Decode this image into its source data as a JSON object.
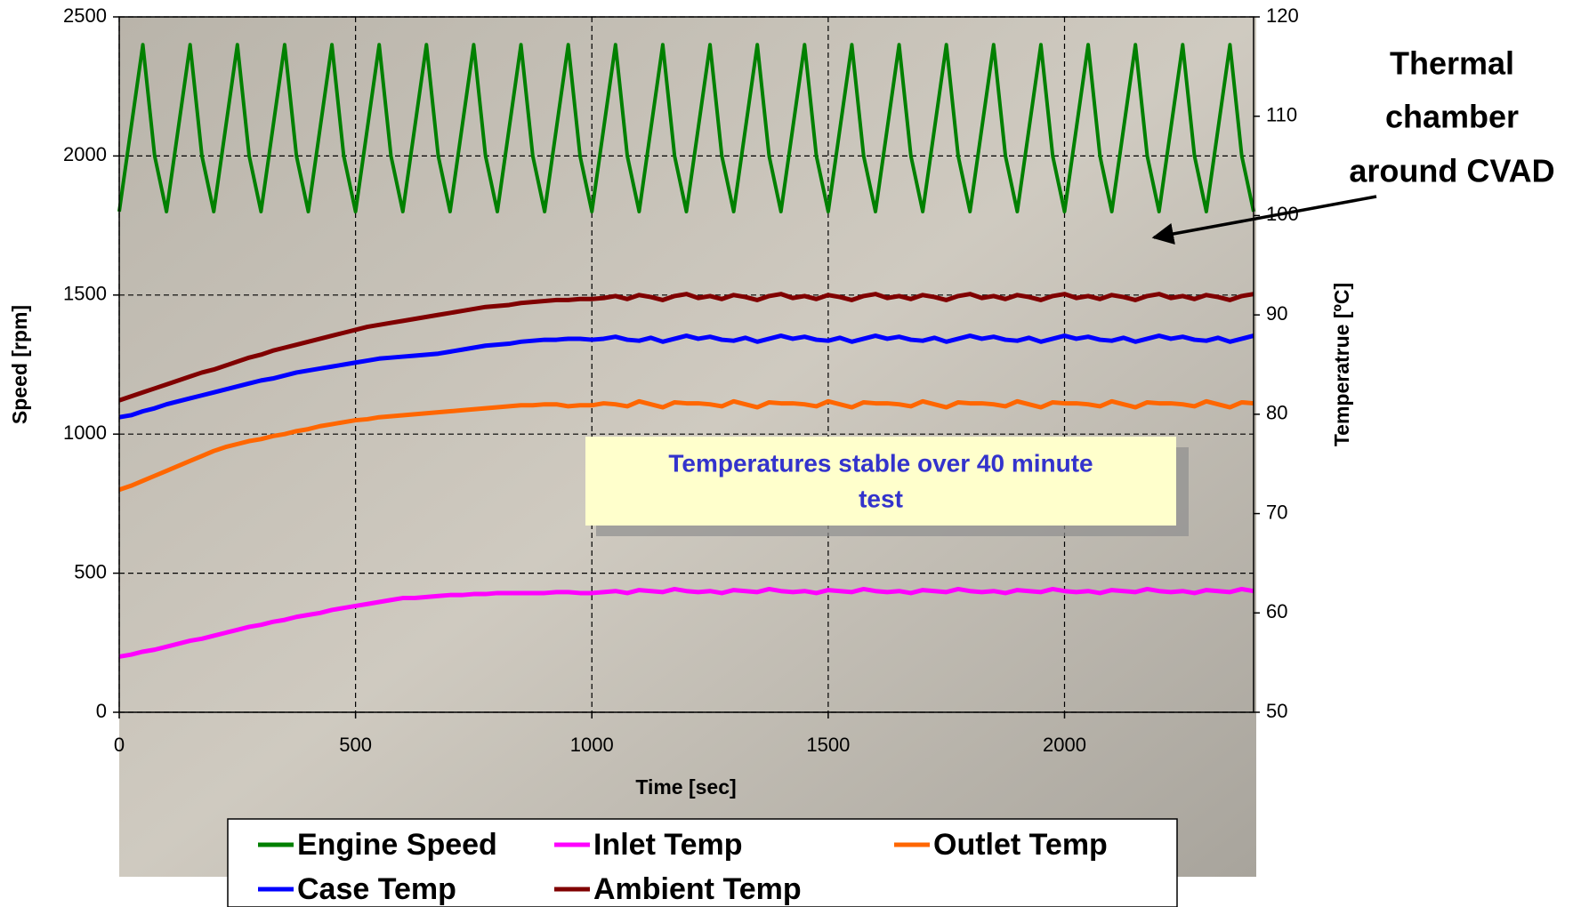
{
  "chart_data": {
    "type": "line",
    "x_label": "Time [sec]",
    "y_label": "Speed [rpm]",
    "y2_label": "Temperatrue [ºC]",
    "xlim": [
      0,
      2400
    ],
    "xticks": [
      0,
      500,
      1000,
      1500,
      2000
    ],
    "ylim": [
      0,
      2500
    ],
    "yticks": [
      0,
      500,
      1000,
      1500,
      2000,
      2500
    ],
    "y2lim": [
      50,
      120
    ],
    "y2ticks": [
      50,
      60,
      70,
      80,
      90,
      100,
      110,
      120
    ],
    "grid": true,
    "annotations": {
      "thermal_chamber": [
        "Thermal",
        "chamber",
        "around CVAD"
      ],
      "stable": [
        "Temperatures stable over 40 minute",
        "test"
      ]
    },
    "x": [
      0,
      25,
      50,
      75,
      100,
      125,
      150,
      175,
      200,
      225,
      250,
      275,
      300,
      325,
      350,
      375,
      400,
      425,
      450,
      475,
      500,
      525,
      550,
      575,
      600,
      625,
      650,
      675,
      700,
      725,
      750,
      775,
      800,
      825,
      850,
      875,
      900,
      925,
      950,
      975,
      1000,
      1025,
      1050,
      1075,
      1100,
      1125,
      1150,
      1175,
      1200,
      1225,
      1250,
      1275,
      1300,
      1325,
      1350,
      1375,
      1400,
      1425,
      1450,
      1475,
      1500,
      1525,
      1550,
      1575,
      1600,
      1625,
      1650,
      1675,
      1700,
      1725,
      1750,
      1775,
      1800,
      1825,
      1850,
      1875,
      1900,
      1925,
      1950,
      1975,
      2000,
      2025,
      2050,
      2075,
      2100,
      2125,
      2150,
      2175,
      2200,
      2225,
      2250,
      2275,
      2300,
      2325,
      2350,
      2375,
      2400
    ],
    "series": [
      {
        "name": "Engine Speed",
        "color": "#008000",
        "axis": "y",
        "values": [
          1800,
          2100,
          2400,
          2000,
          1800,
          2100,
          2400,
          2000,
          1800,
          2100,
          2400,
          2000,
          1800,
          2100,
          2400,
          2000,
          1800,
          2100,
          2400,
          2000,
          1800,
          2100,
          2400,
          2000,
          1800,
          2100,
          2400,
          2000,
          1800,
          2100,
          2400,
          2000,
          1800,
          2100,
          2400,
          2000,
          1800,
          2100,
          2400,
          2000,
          1800,
          2100,
          2400,
          2000,
          1800,
          2100,
          2400,
          2000,
          1800,
          2100,
          2400,
          2000,
          1800,
          2100,
          2400,
          2000,
          1800,
          2100,
          2400,
          2000,
          1800,
          2100,
          2400,
          2000,
          1800,
          2100,
          2400,
          2000,
          1800,
          2100,
          2400,
          2000,
          1800,
          2100,
          2400,
          2000,
          1800,
          2100,
          2400,
          2000,
          1800,
          2100,
          2400,
          2000,
          1800,
          2100,
          2400,
          2000,
          1800,
          2100,
          2400,
          2000,
          1800,
          2100,
          2400,
          2000,
          1800
        ]
      },
      {
        "name": "Inlet Temp",
        "color": "#ff00ff",
        "axis": "y2",
        "values": [
          55.6,
          55.8,
          56.1,
          56.3,
          56.6,
          56.9,
          57.2,
          57.4,
          57.7,
          58.0,
          58.3,
          58.6,
          58.8,
          59.1,
          59.3,
          59.6,
          59.8,
          60.0,
          60.3,
          60.5,
          60.7,
          60.9,
          61.1,
          61.3,
          61.5,
          61.5,
          61.6,
          61.7,
          61.8,
          61.8,
          61.9,
          61.9,
          62.0,
          62.0,
          62.0,
          62.0,
          62.0,
          62.1,
          62.1,
          62.0,
          62.0,
          62.1,
          62.2,
          62.0,
          62.3,
          62.2,
          62.1,
          62.4,
          62.2,
          62.1,
          62.2,
          62.0,
          62.3,
          62.2,
          62.1,
          62.4,
          62.2,
          62.1,
          62.2,
          62.0,
          62.3,
          62.2,
          62.1,
          62.4,
          62.2,
          62.1,
          62.2,
          62.0,
          62.3,
          62.2,
          62.1,
          62.4,
          62.2,
          62.1,
          62.2,
          62.0,
          62.3,
          62.2,
          62.1,
          62.4,
          62.2,
          62.1,
          62.2,
          62.0,
          62.3,
          62.2,
          62.1,
          62.4,
          62.2,
          62.1,
          62.2,
          62.0,
          62.3,
          62.2,
          62.1,
          62.4,
          62.2
        ]
      },
      {
        "name": "Outlet Temp",
        "color": "#ff6600",
        "axis": "y2",
        "values": [
          72.4,
          72.8,
          73.3,
          73.8,
          74.3,
          74.8,
          75.3,
          75.8,
          76.3,
          76.7,
          77.0,
          77.3,
          77.5,
          77.8,
          78.0,
          78.3,
          78.5,
          78.8,
          79.0,
          79.2,
          79.4,
          79.5,
          79.7,
          79.8,
          79.9,
          80.0,
          80.1,
          80.2,
          80.3,
          80.4,
          80.5,
          80.6,
          80.7,
          80.8,
          80.9,
          80.9,
          81.0,
          81.0,
          80.8,
          80.9,
          80.9,
          81.1,
          81.0,
          80.8,
          81.3,
          81.0,
          80.7,
          81.2,
          81.1,
          81.1,
          81.0,
          80.8,
          81.3,
          81.0,
          80.7,
          81.2,
          81.1,
          81.1,
          81.0,
          80.8,
          81.3,
          81.0,
          80.7,
          81.2,
          81.1,
          81.1,
          81.0,
          80.8,
          81.3,
          81.0,
          80.7,
          81.2,
          81.1,
          81.1,
          81.0,
          80.8,
          81.3,
          81.0,
          80.7,
          81.2,
          81.1,
          81.1,
          81.0,
          80.8,
          81.3,
          81.0,
          80.7,
          81.2,
          81.1,
          81.1,
          81.0,
          80.8,
          81.3,
          81.0,
          80.7,
          81.2,
          81.1
        ]
      },
      {
        "name": "Case Temp",
        "color": "#0000ff",
        "axis": "y2",
        "values": [
          79.7,
          79.9,
          80.3,
          80.6,
          81.0,
          81.3,
          81.6,
          81.9,
          82.2,
          82.5,
          82.8,
          83.1,
          83.4,
          83.6,
          83.9,
          84.2,
          84.4,
          84.6,
          84.8,
          85.0,
          85.2,
          85.4,
          85.6,
          85.7,
          85.8,
          85.9,
          86.0,
          86.1,
          86.3,
          86.5,
          86.7,
          86.9,
          87.0,
          87.1,
          87.3,
          87.4,
          87.5,
          87.5,
          87.6,
          87.6,
          87.5,
          87.6,
          87.8,
          87.5,
          87.4,
          87.7,
          87.3,
          87.6,
          87.9,
          87.6,
          87.8,
          87.5,
          87.4,
          87.7,
          87.3,
          87.6,
          87.9,
          87.6,
          87.8,
          87.5,
          87.4,
          87.7,
          87.3,
          87.6,
          87.9,
          87.6,
          87.8,
          87.5,
          87.4,
          87.7,
          87.3,
          87.6,
          87.9,
          87.6,
          87.8,
          87.5,
          87.4,
          87.7,
          87.3,
          87.6,
          87.9,
          87.6,
          87.8,
          87.5,
          87.4,
          87.7,
          87.3,
          87.6,
          87.9,
          87.6,
          87.8,
          87.5,
          87.4,
          87.7,
          87.3,
          87.6,
          87.9
        ]
      },
      {
        "name": "Ambient Temp",
        "color": "#800000",
        "axis": "y2",
        "values": [
          81.4,
          81.8,
          82.2,
          82.6,
          83.0,
          83.4,
          83.8,
          84.2,
          84.5,
          84.9,
          85.3,
          85.7,
          86.0,
          86.4,
          86.7,
          87.0,
          87.3,
          87.6,
          87.9,
          88.2,
          88.5,
          88.8,
          89.0,
          89.2,
          89.4,
          89.6,
          89.8,
          90.0,
          90.2,
          90.4,
          90.6,
          90.8,
          90.9,
          91.0,
          91.2,
          91.3,
          91.4,
          91.5,
          91.5,
          91.6,
          91.6,
          91.7,
          91.9,
          91.6,
          92.0,
          91.8,
          91.5,
          91.9,
          92.1,
          91.7,
          91.9,
          91.6,
          92.0,
          91.8,
          91.5,
          91.9,
          92.1,
          91.7,
          91.9,
          91.6,
          92.0,
          91.8,
          91.5,
          91.9,
          92.1,
          91.7,
          91.9,
          91.6,
          92.0,
          91.8,
          91.5,
          91.9,
          92.1,
          91.7,
          91.9,
          91.6,
          92.0,
          91.8,
          91.5,
          91.9,
          92.1,
          91.7,
          91.9,
          91.6,
          92.0,
          91.8,
          91.5,
          91.9,
          92.1,
          91.7,
          91.9,
          91.6,
          92.0,
          91.8,
          91.5,
          91.9,
          92.1
        ]
      }
    ]
  }
}
